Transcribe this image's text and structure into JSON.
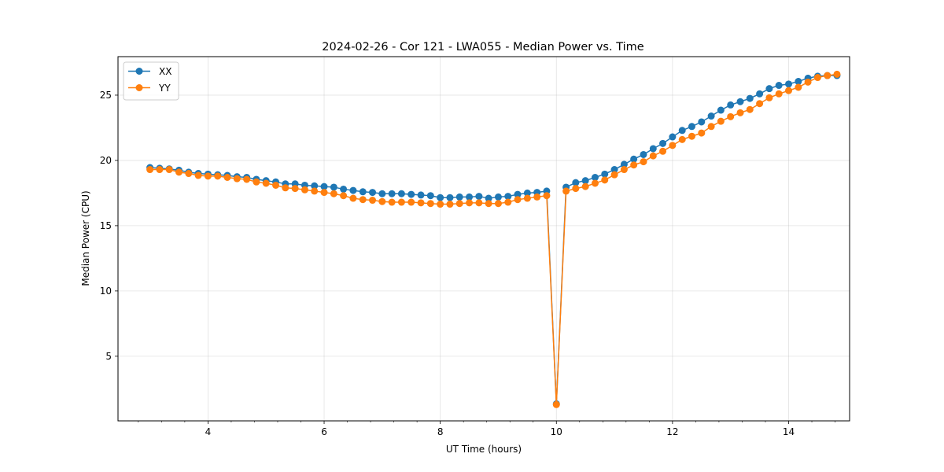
{
  "chart_data": {
    "type": "line",
    "title": "2024-02-26 - Cor 121 - LWA055 - Median Power vs. Time",
    "xlabel": "UT Time (hours)",
    "ylabel": "Median Power (CPU)",
    "xlim": [
      2.45,
      15.05
    ],
    "ylim": [
      0.05,
      27.95
    ],
    "x_ticks": [
      4,
      6,
      8,
      10,
      12,
      14
    ],
    "x_tick_labels": [
      "4",
      "6",
      "8",
      "10",
      "12",
      "14"
    ],
    "y_ticks": [
      5,
      10,
      15,
      20,
      25
    ],
    "y_tick_labels": [
      "5",
      "10",
      "15",
      "20",
      "25"
    ],
    "grid": true,
    "legend_position": "top-left",
    "series": [
      {
        "name": "XX",
        "color": "#1f77b4",
        "x": [
          3.0,
          3.167,
          3.333,
          3.5,
          3.667,
          3.833,
          4.0,
          4.167,
          4.333,
          4.5,
          4.667,
          4.833,
          5.0,
          5.167,
          5.333,
          5.5,
          5.667,
          5.833,
          6.0,
          6.167,
          6.333,
          6.5,
          6.667,
          6.833,
          7.0,
          7.167,
          7.333,
          7.5,
          7.667,
          7.833,
          8.0,
          8.167,
          8.333,
          8.5,
          8.667,
          8.833,
          9.0,
          9.167,
          9.333,
          9.5,
          9.667,
          9.833,
          10.0,
          10.167,
          10.333,
          10.5,
          10.667,
          10.833,
          11.0,
          11.167,
          11.333,
          11.5,
          11.667,
          11.833,
          12.0,
          12.167,
          12.333,
          12.5,
          12.667,
          12.833,
          13.0,
          13.167,
          13.333,
          13.5,
          13.667,
          13.833,
          14.0,
          14.167,
          14.333,
          14.5,
          14.667,
          14.833
        ],
        "y": [
          19.45,
          19.4,
          19.35,
          19.25,
          19.1,
          19.0,
          18.95,
          18.9,
          18.85,
          18.75,
          18.7,
          18.55,
          18.45,
          18.35,
          18.2,
          18.2,
          18.1,
          18.05,
          18.0,
          17.95,
          17.8,
          17.7,
          17.6,
          17.55,
          17.45,
          17.45,
          17.45,
          17.4,
          17.35,
          17.3,
          17.15,
          17.15,
          17.2,
          17.2,
          17.25,
          17.1,
          17.2,
          17.25,
          17.4,
          17.5,
          17.55,
          17.65,
          1.35,
          17.95,
          18.3,
          18.45,
          18.7,
          18.95,
          19.3,
          19.7,
          20.1,
          20.45,
          20.9,
          21.3,
          21.8,
          22.3,
          22.6,
          22.95,
          23.4,
          23.85,
          24.25,
          24.5,
          24.75,
          25.1,
          25.5,
          25.75,
          25.85,
          26.05,
          26.3,
          26.45,
          26.5,
          26.5
        ]
      },
      {
        "name": "YY",
        "color": "#ff7f0e",
        "x": [
          3.0,
          3.167,
          3.333,
          3.5,
          3.667,
          3.833,
          4.0,
          4.167,
          4.333,
          4.5,
          4.667,
          4.833,
          5.0,
          5.167,
          5.333,
          5.5,
          5.667,
          5.833,
          6.0,
          6.167,
          6.333,
          6.5,
          6.667,
          6.833,
          7.0,
          7.167,
          7.333,
          7.5,
          7.667,
          7.833,
          8.0,
          8.167,
          8.333,
          8.5,
          8.667,
          8.833,
          9.0,
          9.167,
          9.333,
          9.5,
          9.667,
          9.833,
          10.0,
          10.167,
          10.333,
          10.5,
          10.667,
          10.833,
          11.0,
          11.167,
          11.333,
          11.5,
          11.667,
          11.833,
          12.0,
          12.167,
          12.333,
          12.5,
          12.667,
          12.833,
          13.0,
          13.167,
          13.333,
          13.5,
          13.667,
          13.833,
          14.0,
          14.167,
          14.333,
          14.5,
          14.667,
          14.833
        ],
        "y": [
          19.3,
          19.3,
          19.3,
          19.1,
          19.0,
          18.85,
          18.8,
          18.8,
          18.7,
          18.6,
          18.55,
          18.35,
          18.25,
          18.1,
          17.9,
          17.85,
          17.75,
          17.65,
          17.55,
          17.45,
          17.3,
          17.1,
          17.0,
          16.95,
          16.85,
          16.8,
          16.8,
          16.8,
          16.75,
          16.7,
          16.65,
          16.65,
          16.7,
          16.75,
          16.75,
          16.7,
          16.7,
          16.8,
          17.0,
          17.1,
          17.2,
          17.3,
          1.3,
          17.65,
          17.85,
          18.0,
          18.25,
          18.5,
          18.9,
          19.3,
          19.65,
          19.9,
          20.35,
          20.7,
          21.15,
          21.6,
          21.85,
          22.1,
          22.6,
          23.0,
          23.35,
          23.65,
          23.9,
          24.35,
          24.8,
          25.1,
          25.35,
          25.6,
          26.0,
          26.35,
          26.5,
          26.6
        ]
      }
    ]
  }
}
